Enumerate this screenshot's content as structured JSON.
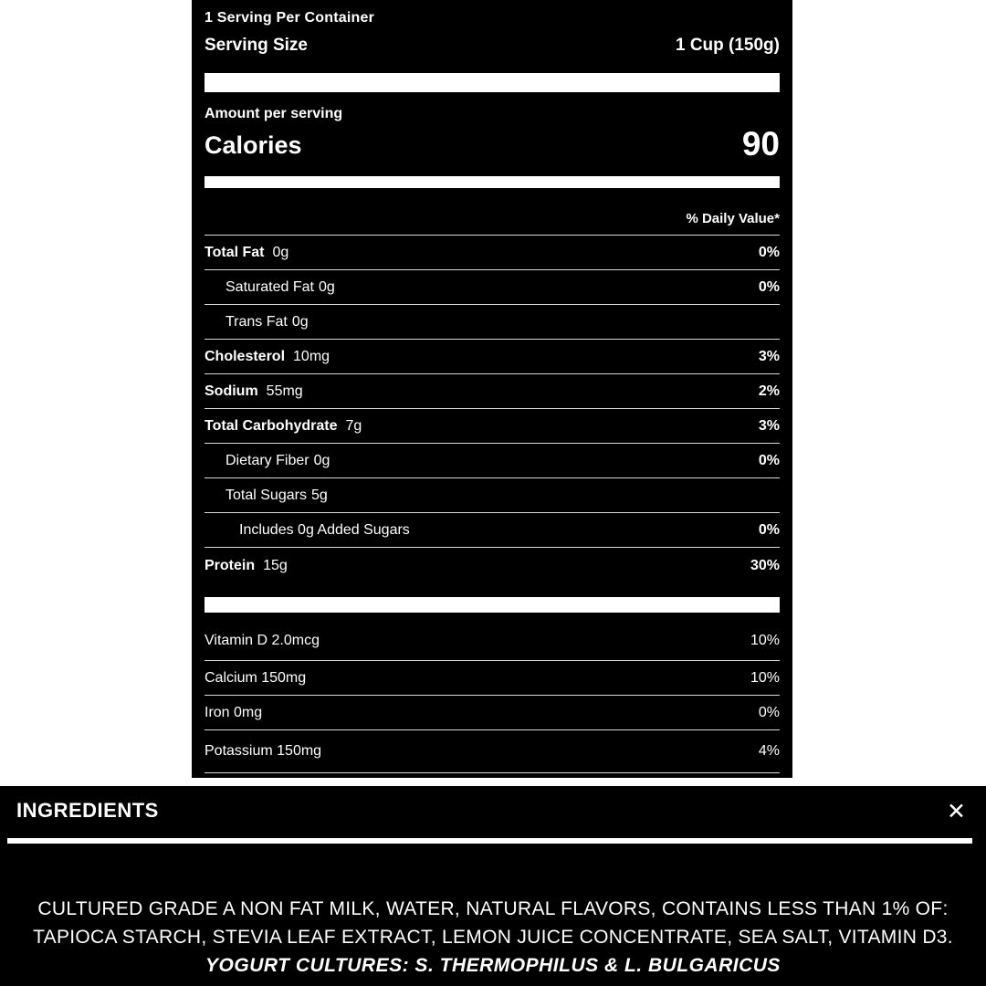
{
  "colors": {
    "page_background": "#ffffff",
    "panel_background": "#000000",
    "text": "#ffffff",
    "divider": "#ffffff"
  },
  "nutrition_label": {
    "servings_per_container": "1 Serving Per Container",
    "serving_size_label": "Serving Size",
    "serving_size_value": "1 Cup (150g)",
    "amount_per_serving_label": "Amount per serving",
    "calories_label": "Calories",
    "calories_value": "90",
    "daily_value_header": "% Daily Value*",
    "nutrients": [
      {
        "name": "Total Fat",
        "amount": "0g",
        "dv": "0%"
      },
      {
        "name": "Saturated Fat",
        "amount": "0g",
        "dv": "0%"
      },
      {
        "name": "Trans Fat",
        "amount": "0g",
        "dv": ""
      },
      {
        "name": "Cholesterol",
        "amount": "10mg",
        "dv": "3%"
      },
      {
        "name": "Sodium",
        "amount": "55mg",
        "dv": "2%"
      },
      {
        "name": "Total Carbohydrate",
        "amount": "7g",
        "dv": "3%"
      },
      {
        "name": "Dietary Fiber",
        "amount": "0g",
        "dv": "0%"
      },
      {
        "name": "Total Sugars",
        "amount": "5g",
        "dv": ""
      },
      {
        "name": "Includes 0g Added Sugars",
        "amount": "",
        "dv": "0%"
      },
      {
        "name": "Protein",
        "amount": "15g",
        "dv": "30%"
      }
    ],
    "vitamins": [
      {
        "name": "Vitamin D 2.0mcg",
        "dv": "10%"
      },
      {
        "name": "Calcium 150mg",
        "dv": "10%"
      },
      {
        "name": "Iron 0mg",
        "dv": "0%"
      },
      {
        "name": "Potassium 150mg",
        "dv": "4%"
      }
    ]
  },
  "ingredients_panel": {
    "title": "INGREDIENTS",
    "close_icon": "✕",
    "lines": [
      "CULTURED GRADE A NON FAT MILK, WATER, NATURAL FLAVORS, CONTAINS LESS THAN 1% OF:",
      "TAPIOCA STARCH, STEVIA LEAF EXTRACT, LEMON JUICE CONCENTRATE, SEA SALT, VITAMIN D3.",
      "YOGURT CULTURES: S. THERMOPHILUS & L. BULGARICUS"
    ]
  }
}
